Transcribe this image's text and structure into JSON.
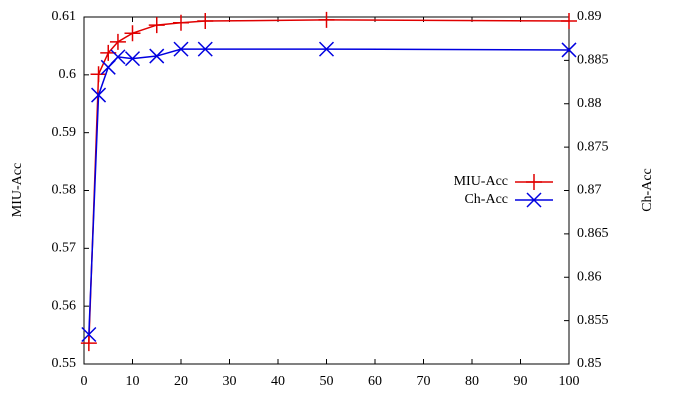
{
  "chart_data": {
    "type": "line",
    "y_label": "MIU-Acc",
    "y2_label": "Ch-Acc",
    "x": [
      1,
      3,
      5,
      7,
      10,
      15,
      20,
      25,
      50,
      100
    ],
    "series": [
      {
        "name": "MIU-Acc",
        "color": "#e00000",
        "marker": "plus",
        "values": [
          0.5536,
          0.6001,
          0.6038,
          0.6057,
          0.6072,
          0.6086,
          0.609,
          0.6093,
          0.6095,
          0.6093
        ]
      },
      {
        "name": "Ch-Acc",
        "color": "#0000e0",
        "marker": "x",
        "axis": "y2",
        "values": [
          0.8534,
          0.881,
          0.8842,
          0.8854,
          0.8852,
          0.8855,
          0.8863,
          0.8863,
          0.8863,
          0.8862
        ]
      }
    ],
    "xlim": [
      0,
      100
    ],
    "xticks": [
      0,
      10,
      20,
      30,
      40,
      50,
      60,
      70,
      80,
      90,
      100
    ],
    "ylim": [
      0.55,
      0.61
    ],
    "yticks": [
      0.55,
      0.56,
      0.57,
      0.58,
      0.59,
      0.6,
      0.61
    ],
    "y2lim": [
      0.85,
      0.89
    ],
    "y2ticks": [
      0.85,
      0.855,
      0.86,
      0.865,
      0.87,
      0.875,
      0.88,
      0.885,
      0.89
    ],
    "legend": "right"
  }
}
